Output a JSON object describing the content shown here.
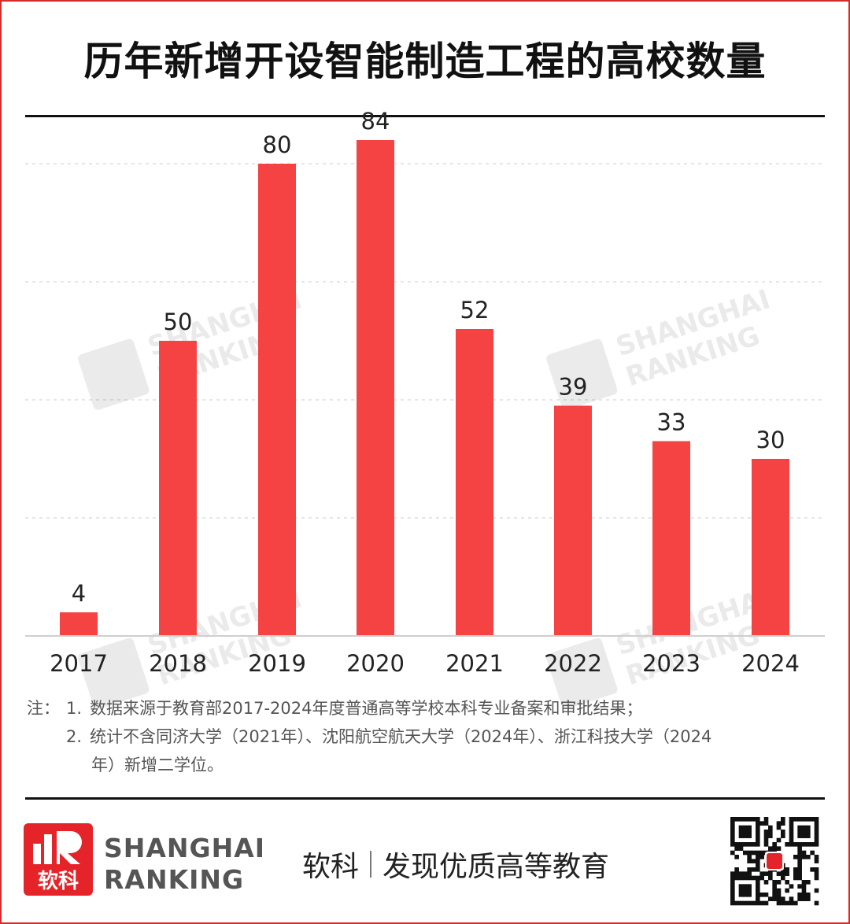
{
  "title": "历年新增开设智能制造工程的高校数量",
  "chart_data": {
    "type": "bar",
    "categories": [
      "2017",
      "2018",
      "2019",
      "2020",
      "2021",
      "2022",
      "2023",
      "2024"
    ],
    "values": [
      4,
      50,
      80,
      84,
      52,
      39,
      33,
      30
    ],
    "title": "历年新增开设智能制造工程的高校数量",
    "xlabel": "",
    "ylabel": "",
    "ylim": [
      0,
      80
    ],
    "grid": true,
    "bar_color": "#f54242",
    "data_labels": true,
    "legend": "none"
  },
  "notes": {
    "lead": "注：",
    "items": [
      {
        "num": "1.",
        "text": "数据来源于教育部2017-2024年度普通高等学校本科专业备案和审批结果；"
      },
      {
        "num": "2.",
        "text": "统计不含同济大学（2021年）、沈阳航空航天大学（2024年）、浙江科技大学（2024",
        "cont": "年）新增二学位。"
      }
    ]
  },
  "brand": {
    "line1": "SHANGHAI",
    "line2": "RANKING",
    "logo_text": "软科",
    "slogan_left": "软科",
    "slogan_right": "发现优质高等教育",
    "watermark_line1": "SHANGHAI",
    "watermark_line2": "RANKING",
    "accent_color": "#e5242a"
  }
}
